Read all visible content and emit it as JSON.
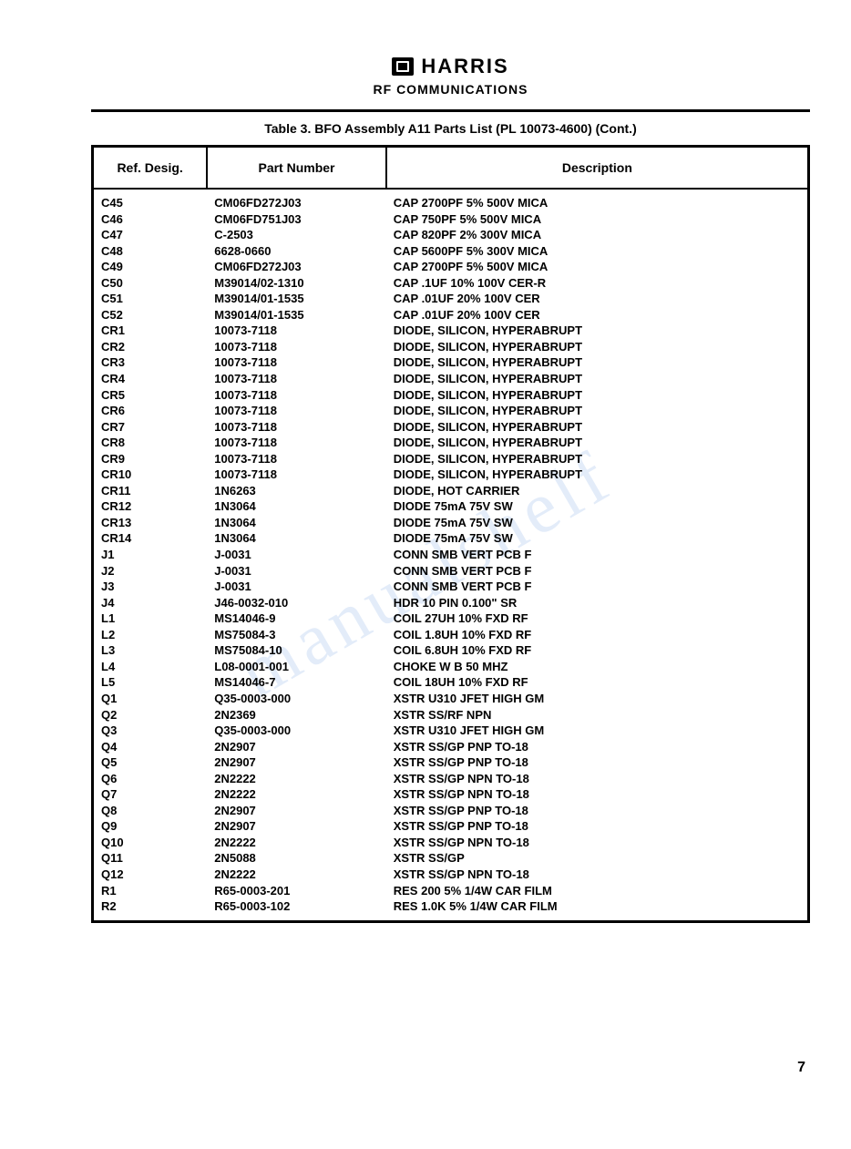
{
  "header": {
    "company": "HARRIS",
    "division": "RF COMMUNICATIONS"
  },
  "table": {
    "title": "Table 3.  BFO Assembly A11 Parts List (PL 10073-4600)  (Cont.)",
    "columns": {
      "ref": "Ref. Desig.",
      "part": "Part Number",
      "desc": "Description"
    },
    "rows": [
      {
        "ref": "C45",
        "part": "CM06FD272J03",
        "desc": "CAP 2700PF  5%  500V MICA"
      },
      {
        "ref": "C46",
        "part": "CM06FD751J03",
        "desc": "CAP  750PF  5%  500V MICA"
      },
      {
        "ref": "C47",
        "part": "C-2503",
        "desc": "CAP   820PF  2%  300V MICA"
      },
      {
        "ref": "C48",
        "part": "6628-0660",
        "desc": "CAP 5600PF  5%  300V MICA"
      },
      {
        "ref": "C49",
        "part": "CM06FD272J03",
        "desc": "CAP 2700PF  5%  500V MICA"
      },
      {
        "ref": "C50",
        "part": "M39014/02-1310",
        "desc": "CAP  .1UF 10% 100V CER-R"
      },
      {
        "ref": "C51",
        "part": "M39014/01-1535",
        "desc": "CAP  .01UF 20% 100V CER"
      },
      {
        "ref": "C52",
        "part": "M39014/01-1535",
        "desc": "CAP .01UF 20% 100V CER"
      },
      {
        "ref": "CR1",
        "part": "10073-7118",
        "desc": "DIODE, SILICON, HYPERABRUPT"
      },
      {
        "ref": "CR2",
        "part": "10073-7118",
        "desc": "DIODE, SILICON, HYPERABRUPT"
      },
      {
        "ref": "CR3",
        "part": "10073-7118",
        "desc": "DIODE, SILICON, HYPERABRUPT"
      },
      {
        "ref": "CR4",
        "part": "10073-7118",
        "desc": "DIODE, SILICON, HYPERABRUPT"
      },
      {
        "ref": "CR5",
        "part": "10073-7118",
        "desc": "DIODE, SILICON, HYPERABRUPT"
      },
      {
        "ref": "CR6",
        "part": "10073-7118",
        "desc": "DIODE, SILICON, HYPERABRUPT"
      },
      {
        "ref": "CR7",
        "part": "10073-7118",
        "desc": "DIODE, SILICON, HYPERABRUPT"
      },
      {
        "ref": "CR8",
        "part": "10073-7118",
        "desc": "DIODE, SILICON, HYPERABRUPT"
      },
      {
        "ref": "CR9",
        "part": "10073-7118",
        "desc": "DIODE, SILICON, HYPERABRUPT"
      },
      {
        "ref": "CR10",
        "part": "10073-7118",
        "desc": "DIODE, SILICON, HYPERABRUPT"
      },
      {
        "ref": "CR11",
        "part": "1N6263",
        "desc": "DIODE, HOT CARRIER"
      },
      {
        "ref": "CR12",
        "part": "1N3064",
        "desc": "DIODE 75mA  75V SW"
      },
      {
        "ref": "CR13",
        "part": "1N3064",
        "desc": "DIODE 75mA  75V SW"
      },
      {
        "ref": "CR14",
        "part": "1N3064",
        "desc": "DIODE  75mA  75V SW"
      },
      {
        "ref": "J1",
        "part": "J-0031",
        "desc": "CONN SMB VERT PCB F"
      },
      {
        "ref": "J2",
        "part": "J-0031",
        "desc": "CONN SMB VERT PCB F"
      },
      {
        "ref": "J3",
        "part": "J-0031",
        "desc": "CONN SMB VERT PCB F"
      },
      {
        "ref": "J4",
        "part": "J46-0032-010",
        "desc": "HDR 10 PIN 0.100\" SR"
      },
      {
        "ref": "L1",
        "part": "MS14046-9",
        "desc": "COIL  27UH 10% FXD RF"
      },
      {
        "ref": "L2",
        "part": "MS75084-3",
        "desc": "COIL  1.8UH 10% FXD RF"
      },
      {
        "ref": "L3",
        "part": "MS75084-10",
        "desc": "COIL 6.8UH 10% FXD RF"
      },
      {
        "ref": "L4",
        "part": "L08-0001-001",
        "desc": "CHOKE W B  50 MHZ"
      },
      {
        "ref": "L5",
        "part": "MS14046-7",
        "desc": "COIL   18UH 10% FXD RF"
      },
      {
        "ref": "Q1",
        "part": "Q35-0003-000",
        "desc": "XSTR  U310 JFET HIGH GM"
      },
      {
        "ref": "Q2",
        "part": "2N2369",
        "desc": "XSTR SS/RF  NPN"
      },
      {
        "ref": "Q3",
        "part": "Q35-0003-000",
        "desc": "XSTR  U310 JFET HIGH GM"
      },
      {
        "ref": "Q4",
        "part": "2N2907",
        "desc": "XSTR SS/GP  PNP TO-18"
      },
      {
        "ref": "Q5",
        "part": "2N2907",
        "desc": "XSTR SS/GP  PNP TO-18"
      },
      {
        "ref": "Q6",
        "part": "2N2222",
        "desc": "XSTR SS/GP  NPN TO-18"
      },
      {
        "ref": "Q7",
        "part": "2N2222",
        "desc": "XSTR SS/GP  NPN TO-18"
      },
      {
        "ref": "Q8",
        "part": "2N2907",
        "desc": "XSTR SS/GP  PNP TO-18"
      },
      {
        "ref": "Q9",
        "part": "2N2907",
        "desc": "XSTR SS/GP  PNP TO-18"
      },
      {
        "ref": "Q10",
        "part": "2N2222",
        "desc": "XSTR SS/GP  NPN TO-18"
      },
      {
        "ref": "Q11",
        "part": "2N5088",
        "desc": "XSTR SS/GP"
      },
      {
        "ref": "Q12",
        "part": "2N2222",
        "desc": "XSTR SS/GP  NPN TO-18"
      },
      {
        "ref": "R1",
        "part": "R65-0003-201",
        "desc": "RES  200 5% 1/4W CAR FILM"
      },
      {
        "ref": "R2",
        "part": "R65-0003-102",
        "desc": "RES 1.0K 5% 1/4W CAR FILM"
      }
    ]
  },
  "watermark": "manualshelf",
  "pageNumber": "7"
}
